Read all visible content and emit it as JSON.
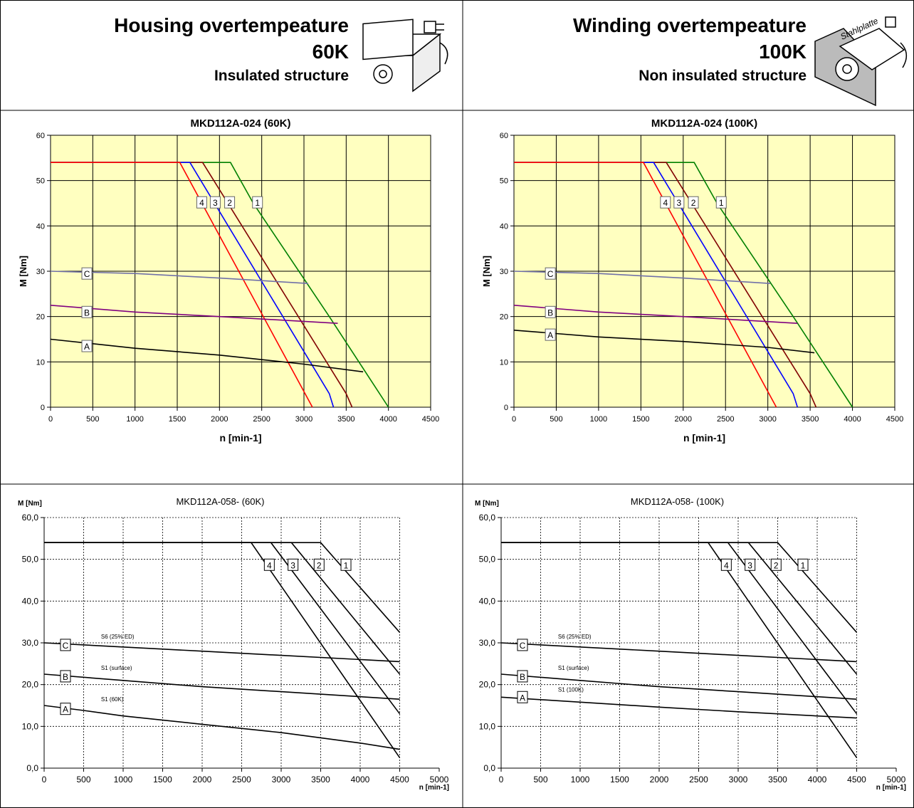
{
  "header": {
    "left": {
      "title": "Housing overtempeature",
      "temp": "60K",
      "structure": "Insulated structure"
    },
    "right": {
      "title": "Winding overtempeature",
      "temp": "100K",
      "structure": "Non insulated structure",
      "plate": "Stahlplatte"
    }
  },
  "chart_data": [
    {
      "type": "line",
      "style": "filled-grid",
      "background": "#ffffc0",
      "title": "MKD112A-024 (60K)",
      "xlabel": "n [min-1]",
      "ylabel": "M [Nm]",
      "xlim": [
        0,
        4500
      ],
      "ylim": [
        0,
        60
      ],
      "xticks": [
        0,
        500,
        1000,
        1500,
        2000,
        2500,
        3000,
        3500,
        4000,
        4500
      ],
      "yticks": [
        0,
        10,
        20,
        30,
        40,
        50,
        60
      ],
      "grid": true,
      "series": [
        {
          "name": "1",
          "color": "#008000",
          "x": [
            0,
            2130,
            2400,
            3300,
            4000
          ],
          "values": [
            54,
            54,
            45,
            20,
            0
          ]
        },
        {
          "name": "2",
          "color": "#800000",
          "x": [
            0,
            1800,
            3500,
            3570
          ],
          "values": [
            54,
            54,
            3,
            0
          ]
        },
        {
          "name": "3",
          "color": "#0000ff",
          "x": [
            0,
            1650,
            3300,
            3350
          ],
          "values": [
            54,
            54,
            3,
            0
          ]
        },
        {
          "name": "4",
          "color": "#ff0000",
          "x": [
            0,
            1530,
            3100
          ],
          "values": [
            54,
            54,
            0
          ]
        },
        {
          "name": "A",
          "color": "#000000",
          "x": [
            0,
            1000,
            2000,
            3000,
            3700
          ],
          "values": [
            15,
            13,
            11.5,
            9.5,
            7.8
          ]
        },
        {
          "name": "B",
          "color": "#800080",
          "x": [
            0,
            1000,
            2000,
            3400
          ],
          "values": [
            22.5,
            21,
            20,
            18.5
          ]
        },
        {
          "name": "C",
          "color": "#7070a8",
          "x": [
            0,
            1000,
            2000,
            3050
          ],
          "values": [
            30,
            29.5,
            28.5,
            27.3
          ]
        }
      ]
    },
    {
      "type": "line",
      "style": "filled-grid",
      "background": "#ffffc0",
      "title": "MKD112A-024 (100K)",
      "xlabel": "n [min-1]",
      "ylabel": "M [Nm]",
      "xlim": [
        0,
        4500
      ],
      "ylim": [
        0,
        60
      ],
      "xticks": [
        0,
        500,
        1000,
        1500,
        2000,
        2500,
        3000,
        3500,
        4000,
        4500
      ],
      "yticks": [
        0,
        10,
        20,
        30,
        40,
        50,
        60
      ],
      "grid": true,
      "series": [
        {
          "name": "1",
          "color": "#008000",
          "x": [
            0,
            2130,
            2400,
            3300,
            4000
          ],
          "values": [
            54,
            54,
            45,
            20,
            0
          ]
        },
        {
          "name": "2",
          "color": "#800000",
          "x": [
            0,
            1800,
            3500,
            3570
          ],
          "values": [
            54,
            54,
            3,
            0
          ]
        },
        {
          "name": "3",
          "color": "#0000ff",
          "x": [
            0,
            1650,
            3300,
            3350
          ],
          "values": [
            54,
            54,
            3,
            0
          ]
        },
        {
          "name": "4",
          "color": "#ff0000",
          "x": [
            0,
            1530,
            3100
          ],
          "values": [
            54,
            54,
            0
          ]
        },
        {
          "name": "A",
          "color": "#000000",
          "x": [
            0,
            1000,
            2000,
            3000,
            3550
          ],
          "values": [
            17,
            15.5,
            14.5,
            13.2,
            12
          ]
        },
        {
          "name": "B",
          "color": "#800080",
          "x": [
            0,
            1000,
            2000,
            3350
          ],
          "values": [
            22.5,
            21,
            20,
            18.5
          ]
        },
        {
          "name": "C",
          "color": "#7070a8",
          "x": [
            0,
            1000,
            2000,
            3030
          ],
          "values": [
            30,
            29.5,
            28.5,
            27.3
          ]
        }
      ]
    },
    {
      "type": "line",
      "style": "dashed-grid",
      "title": "MKD112A-058- (60K)",
      "xlabel": "n [min-1]",
      "ylabel": "M [Nm]",
      "xlim": [
        0,
        5000
      ],
      "ylim": [
        0,
        60
      ],
      "xticks": [
        0,
        500,
        1000,
        1500,
        2000,
        2500,
        3000,
        3500,
        4000,
        4500,
        5000
      ],
      "yticks": [
        {
          "value": 0,
          "label": "0,0"
        },
        {
          "value": 10,
          "label": "10,0"
        },
        {
          "value": 20,
          "label": "20,0"
        },
        {
          "value": 30,
          "label": "30,0"
        },
        {
          "value": 40,
          "label": "40,0"
        },
        {
          "value": 50,
          "label": "50,0"
        },
        {
          "value": 60,
          "label": "60,0"
        }
      ],
      "grid": true,
      "series": [
        {
          "name": "1",
          "color": "#000000",
          "x": [
            0,
            3500,
            4500
          ],
          "values": [
            54,
            54,
            32.5
          ]
        },
        {
          "name": "2",
          "color": "#000000",
          "x": [
            0,
            3130,
            4500
          ],
          "values": [
            54,
            54,
            22.5
          ]
        },
        {
          "name": "3",
          "color": "#000000",
          "x": [
            0,
            2870,
            4500
          ],
          "values": [
            54,
            54,
            13
          ]
        },
        {
          "name": "4",
          "color": "#000000",
          "x": [
            0,
            2620,
            4500
          ],
          "values": [
            54,
            54,
            2.5
          ]
        },
        {
          "name": "A",
          "note": "S1 (60K)",
          "color": "#000000",
          "x": [
            0,
            500,
            1000,
            2000,
            3000,
            4000,
            4500
          ],
          "values": [
            15,
            13.8,
            12.5,
            10.5,
            8.5,
            6,
            4.5
          ]
        },
        {
          "name": "B",
          "note": "S1 (surface)",
          "color": "#000000",
          "x": [
            0,
            1000,
            2000,
            3000,
            4500
          ],
          "values": [
            22.5,
            21,
            19.5,
            18.3,
            16.5
          ]
        },
        {
          "name": "C",
          "note": "S6 (25% ED)",
          "color": "#000000",
          "x": [
            0,
            2000,
            4500
          ],
          "values": [
            30,
            28,
            25.5
          ]
        }
      ]
    },
    {
      "type": "line",
      "style": "dashed-grid",
      "title": "MKD112A-058- (100K)",
      "xlabel": "n [min-1]",
      "ylabel": "M [Nm]",
      "xlim": [
        0,
        5000
      ],
      "ylim": [
        0,
        60
      ],
      "xticks": [
        0,
        500,
        1000,
        1500,
        2000,
        2500,
        3000,
        3500,
        4000,
        4500,
        5000
      ],
      "yticks": [
        {
          "value": 0,
          "label": "0,0"
        },
        {
          "value": 10,
          "label": "10,0"
        },
        {
          "value": 20,
          "label": "20,0"
        },
        {
          "value": 30,
          "label": "30,0"
        },
        {
          "value": 40,
          "label": "40,0"
        },
        {
          "value": 50,
          "label": "50,0"
        },
        {
          "value": 60,
          "label": "60,0"
        }
      ],
      "grid": true,
      "series": [
        {
          "name": "1",
          "color": "#000000",
          "x": [
            0,
            3500,
            4500
          ],
          "values": [
            54,
            54,
            32.5
          ]
        },
        {
          "name": "2",
          "color": "#000000",
          "x": [
            0,
            3130,
            4500
          ],
          "values": [
            54,
            54,
            22.5
          ]
        },
        {
          "name": "3",
          "color": "#000000",
          "x": [
            0,
            2870,
            4500
          ],
          "values": [
            54,
            54,
            13
          ]
        },
        {
          "name": "4",
          "color": "#000000",
          "x": [
            0,
            2620,
            4500
          ],
          "values": [
            54,
            54,
            2.5
          ]
        },
        {
          "name": "A",
          "note": "S1 (100K)",
          "color": "#000000",
          "x": [
            0,
            1000,
            2000,
            3000,
            4500
          ],
          "values": [
            17,
            15.8,
            14.6,
            13.5,
            12
          ]
        },
        {
          "name": "B",
          "note": "S1 (surface)",
          "color": "#000000",
          "x": [
            0,
            1000,
            2000,
            3000,
            4500
          ],
          "values": [
            22.5,
            21,
            19.5,
            18.3,
            16.5
          ]
        },
        {
          "name": "C",
          "note": "S6 (25% ED)",
          "color": "#000000",
          "x": [
            0,
            2000,
            4500
          ],
          "values": [
            30,
            28,
            25.5
          ]
        }
      ]
    }
  ]
}
